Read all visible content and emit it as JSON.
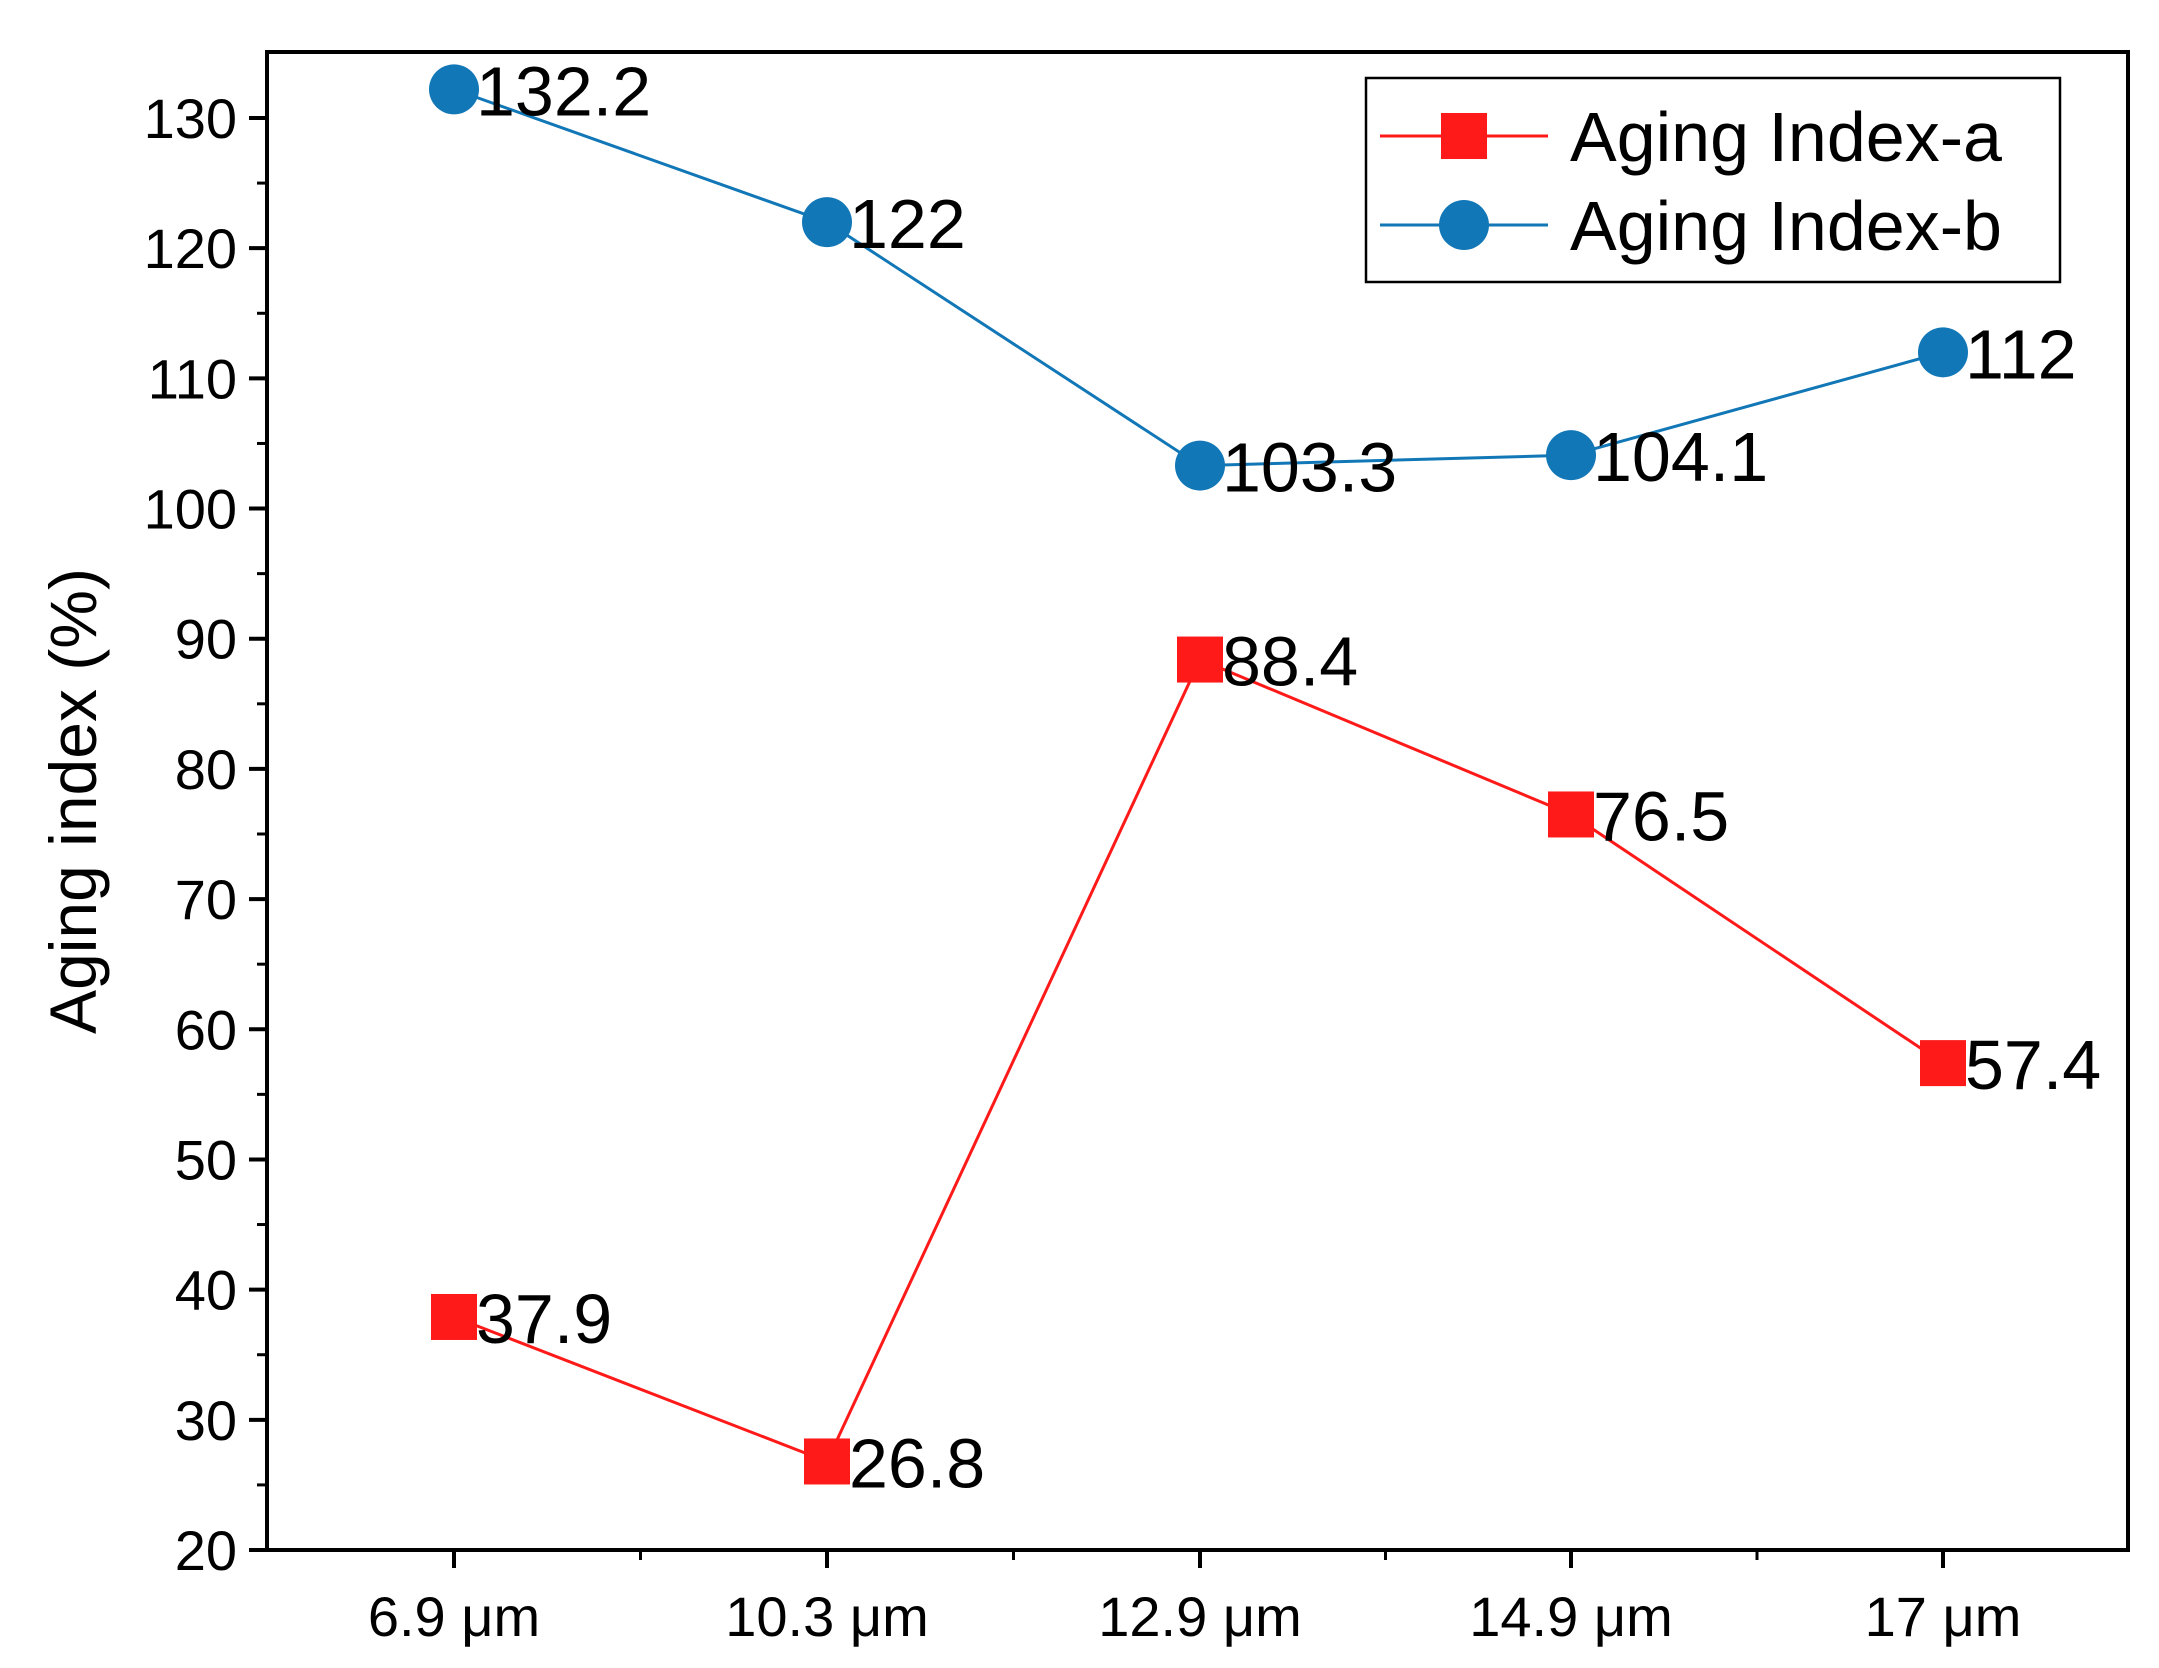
{
  "chart_data": {
    "type": "line",
    "title": "",
    "xlabel": "",
    "ylabel": "Aging index (%)",
    "categories": [
      "6.9 μm",
      "10.3 μm",
      "12.9 μm",
      "14.9 μm",
      "17 μm"
    ],
    "ylim": [
      20,
      135
    ],
    "yticks": [
      20,
      30,
      40,
      50,
      60,
      70,
      80,
      90,
      100,
      110,
      120,
      130
    ],
    "legend_position": "top-right",
    "series": [
      {
        "name": "Aging Index-a",
        "color": "#ff1a1a",
        "marker": "square",
        "values": [
          37.9,
          26.8,
          88.4,
          76.5,
          57.4
        ],
        "labels": [
          "37.9",
          "26.8",
          "88.4",
          "76.5",
          "57.4"
        ]
      },
      {
        "name": "Aging Index-b",
        "color": "#1277b6",
        "marker": "circle",
        "values": [
          132.2,
          122,
          103.3,
          104.1,
          112
        ],
        "labels": [
          "132.2",
          "122",
          "103.3",
          "104.1",
          "112"
        ]
      }
    ]
  }
}
